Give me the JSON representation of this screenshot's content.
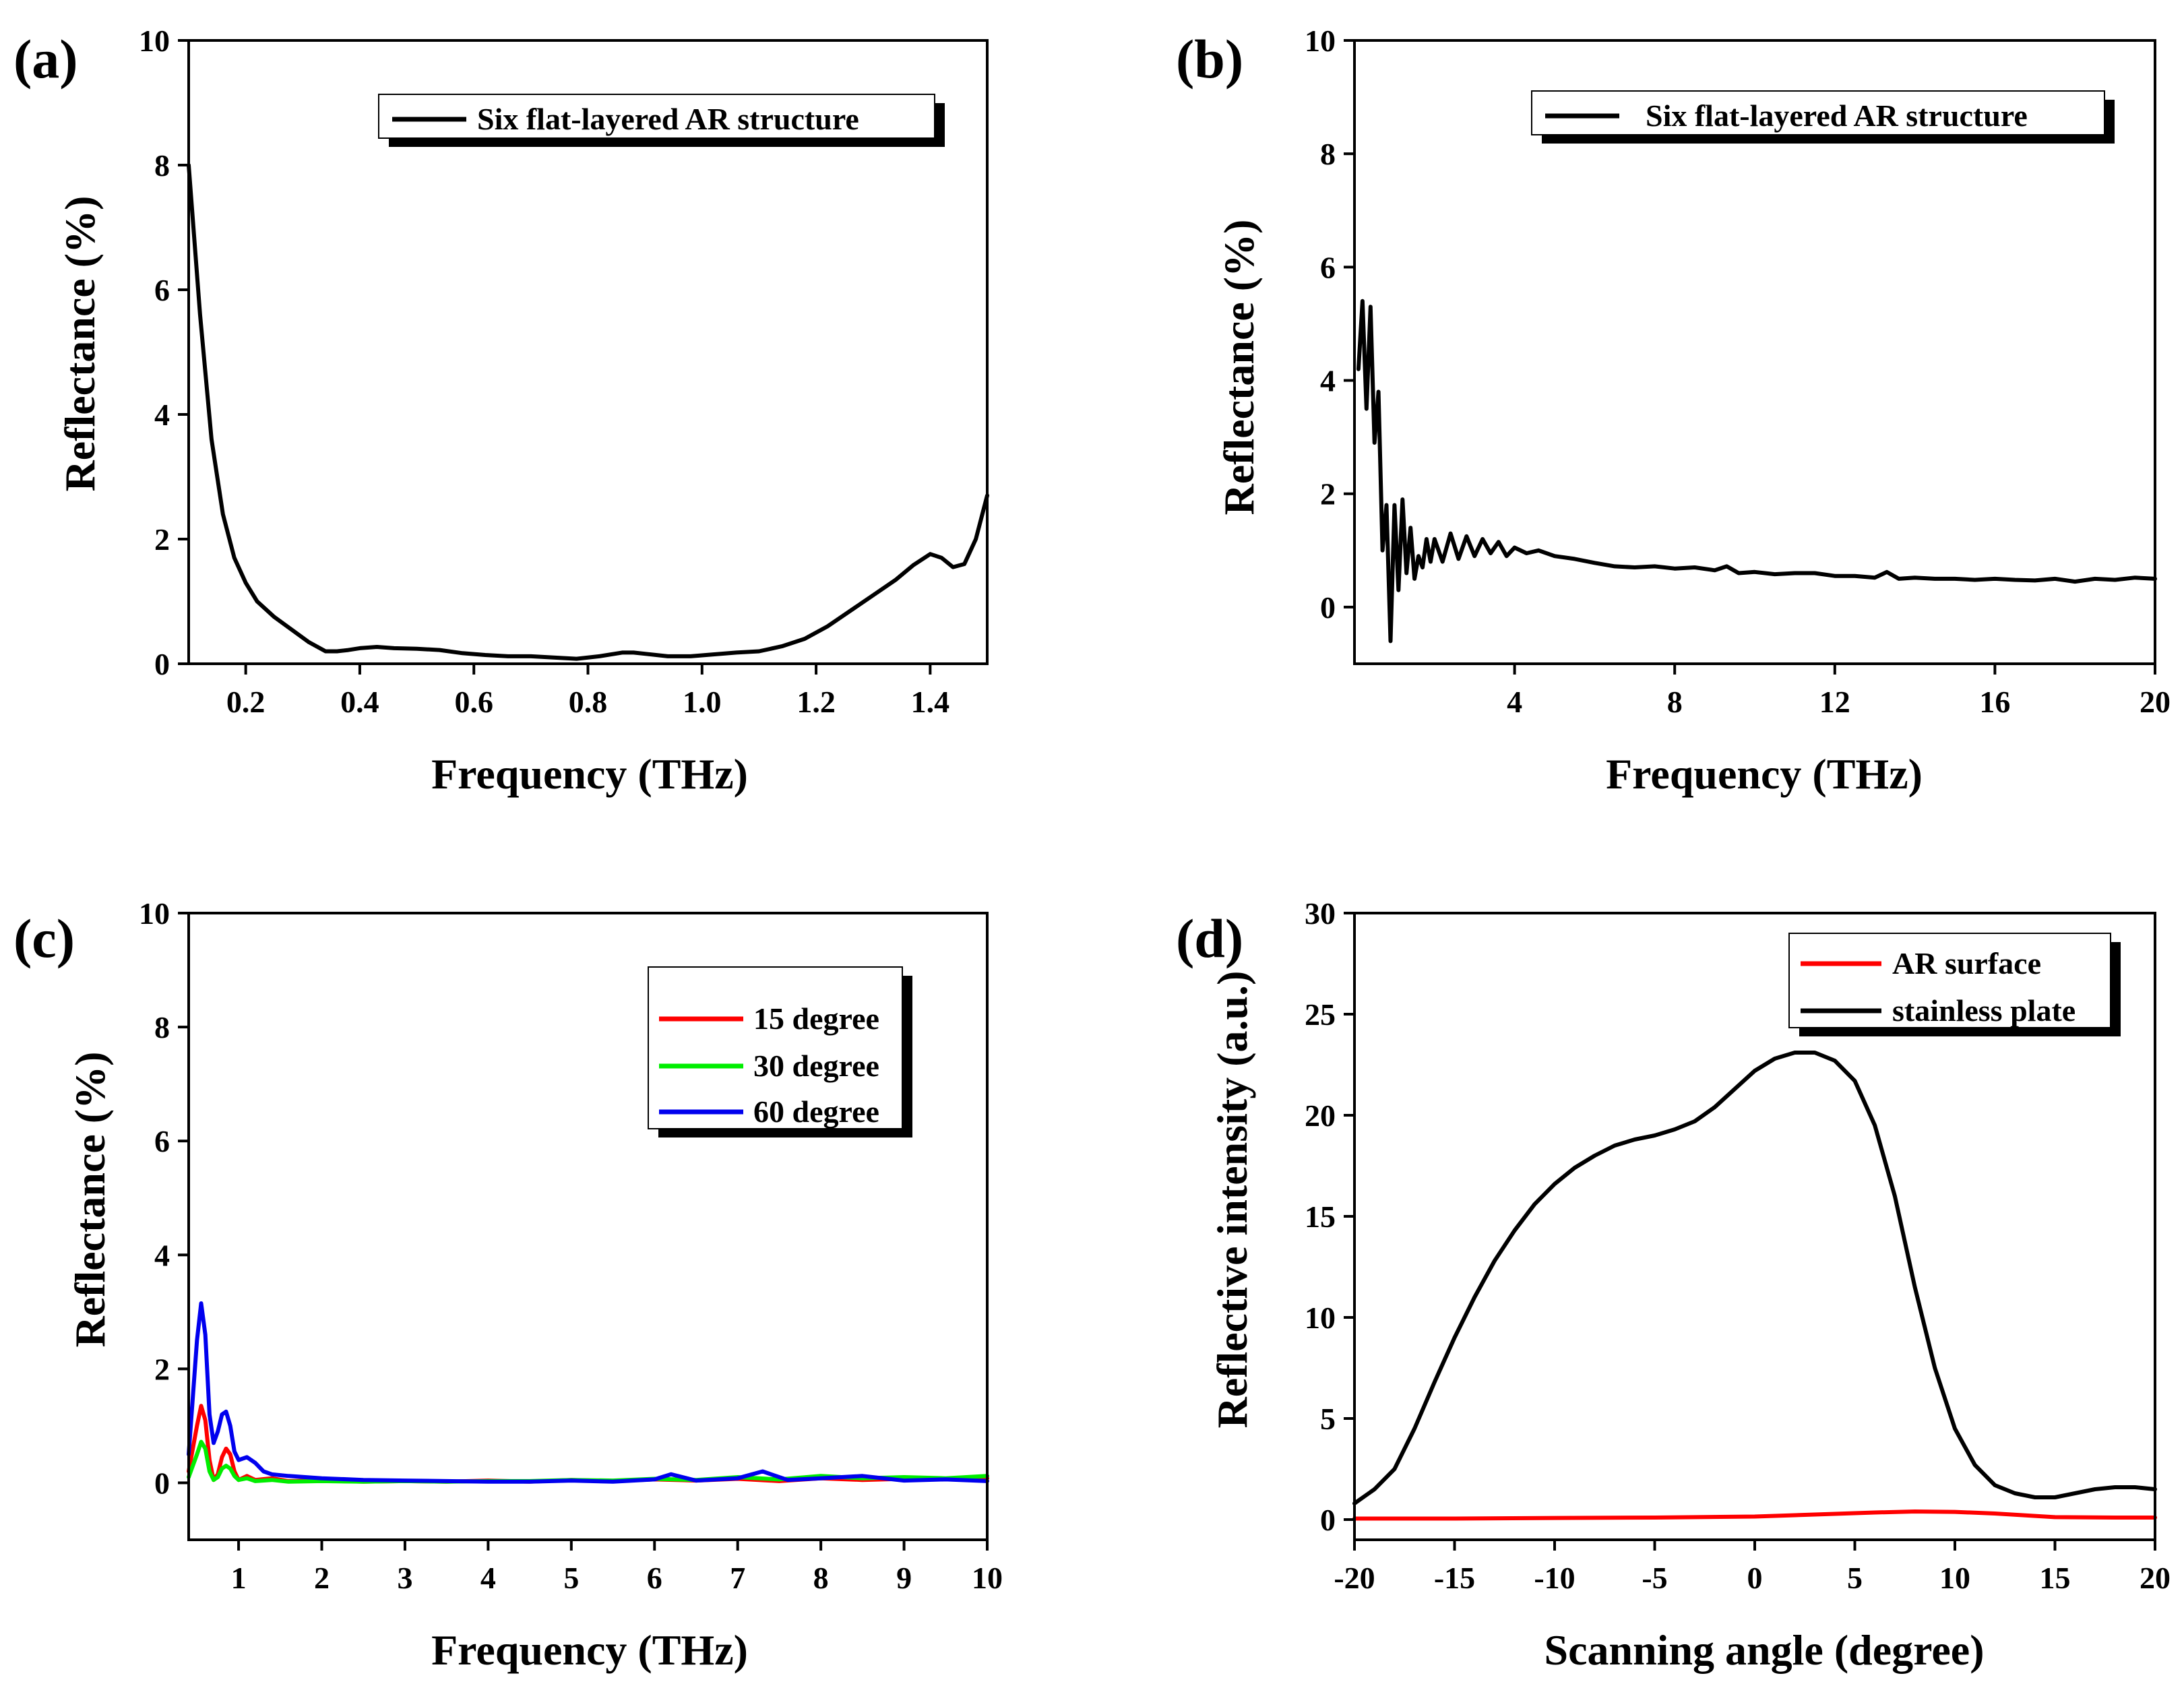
{
  "chart_data": [
    {
      "type": "line",
      "panel_label": "(a)",
      "xlabel": "Frequency (THz)",
      "ylabel": "Reflectance (%)",
      "xlim": [
        0.1,
        1.5
      ],
      "ylim": [
        0,
        10
      ],
      "xticks": [
        0.2,
        0.4,
        0.6,
        0.8,
        1.0,
        1.2,
        1.4
      ],
      "xtick_labels": [
        "0.2",
        "0.4",
        "0.6",
        "0.8",
        "1.0",
        "1.2",
        "1.4"
      ],
      "yticks": [
        0,
        2,
        4,
        6,
        8,
        10
      ],
      "ytick_labels": [
        "0",
        "2",
        "4",
        "6",
        "8",
        "10"
      ],
      "legend_position": "top-right",
      "series": [
        {
          "name": "Six flat-layered AR structure",
          "color": "#000000",
          "x": [
            0.1,
            0.12,
            0.14,
            0.16,
            0.18,
            0.2,
            0.22,
            0.25,
            0.28,
            0.31,
            0.34,
            0.36,
            0.38,
            0.4,
            0.43,
            0.46,
            0.5,
            0.54,
            0.58,
            0.62,
            0.66,
            0.7,
            0.74,
            0.78,
            0.82,
            0.86,
            0.88,
            0.9,
            0.94,
            0.98,
            1.02,
            1.06,
            1.1,
            1.14,
            1.18,
            1.22,
            1.26,
            1.3,
            1.34,
            1.37,
            1.4,
            1.42,
            1.44,
            1.46,
            1.48,
            1.5
          ],
          "y": [
            8.0,
            5.6,
            3.6,
            2.4,
            1.7,
            1.3,
            1.0,
            0.75,
            0.55,
            0.35,
            0.2,
            0.2,
            0.22,
            0.25,
            0.27,
            0.25,
            0.24,
            0.22,
            0.17,
            0.14,
            0.12,
            0.12,
            0.1,
            0.08,
            0.12,
            0.18,
            0.18,
            0.16,
            0.12,
            0.12,
            0.15,
            0.18,
            0.2,
            0.28,
            0.4,
            0.6,
            0.85,
            1.1,
            1.35,
            1.58,
            1.76,
            1.7,
            1.55,
            1.6,
            2.0,
            2.7
          ]
        }
      ]
    },
    {
      "type": "line",
      "panel_label": "(b)",
      "xlabel": "Frequency (THz)",
      "ylabel": "Reflectance (%)",
      "xlim": [
        0,
        20
      ],
      "ylim": [
        -1,
        10
      ],
      "xticks": [
        4,
        8,
        12,
        16,
        20
      ],
      "xtick_labels": [
        "4",
        "8",
        "12",
        "16",
        "20"
      ],
      "yticks": [
        0,
        2,
        4,
        6,
        8,
        10
      ],
      "ytick_labels": [
        "0",
        "2",
        "4",
        "6",
        "8",
        "10"
      ],
      "legend_position": "top-right",
      "series": [
        {
          "name": "Six flat-layered AR structure",
          "color": "#000000",
          "x": [
            0.1,
            0.2,
            0.3,
            0.4,
            0.5,
            0.6,
            0.7,
            0.8,
            0.9,
            1.0,
            1.1,
            1.2,
            1.3,
            1.4,
            1.5,
            1.6,
            1.7,
            1.8,
            1.9,
            2.0,
            2.2,
            2.4,
            2.6,
            2.8,
            3.0,
            3.2,
            3.4,
            3.6,
            3.8,
            4.0,
            4.3,
            4.6,
            5.0,
            5.5,
            6.0,
            6.5,
            7.0,
            7.5,
            8.0,
            8.5,
            9.0,
            9.3,
            9.6,
            10.0,
            10.5,
            11.0,
            11.5,
            12.0,
            12.5,
            13.0,
            13.3,
            13.6,
            14.0,
            14.5,
            15.0,
            15.5,
            16.0,
            16.5,
            17.0,
            17.5,
            18.0,
            18.5,
            19.0,
            19.5,
            20.0
          ],
          "y": [
            4.2,
            5.4,
            3.5,
            5.3,
            2.9,
            3.8,
            1.0,
            1.8,
            -0.6,
            1.8,
            0.3,
            1.9,
            0.6,
            1.4,
            0.5,
            0.9,
            0.7,
            1.2,
            0.8,
            1.2,
            0.8,
            1.3,
            0.85,
            1.25,
            0.9,
            1.2,
            0.95,
            1.15,
            0.9,
            1.05,
            0.95,
            1.0,
            0.9,
            0.85,
            0.78,
            0.72,
            0.7,
            0.72,
            0.68,
            0.7,
            0.65,
            0.72,
            0.6,
            0.62,
            0.58,
            0.6,
            0.6,
            0.55,
            0.55,
            0.52,
            0.62,
            0.5,
            0.52,
            0.5,
            0.5,
            0.48,
            0.5,
            0.48,
            0.47,
            0.5,
            0.45,
            0.5,
            0.48,
            0.52,
            0.5
          ]
        }
      ]
    },
    {
      "type": "line",
      "panel_label": "(c)",
      "xlabel": "Frequency (THz)",
      "ylabel": "Reflectance (%)",
      "xlim": [
        0.4,
        10
      ],
      "ylim": [
        -1,
        10
      ],
      "xticks": [
        1,
        2,
        3,
        4,
        5,
        6,
        7,
        8,
        9,
        10
      ],
      "xtick_labels": [
        "1",
        "2",
        "3",
        "4",
        "5",
        "6",
        "7",
        "8",
        "9",
        "10"
      ],
      "yticks": [
        0,
        2,
        4,
        6,
        8,
        10
      ],
      "ytick_labels": [
        "0",
        "2",
        "4",
        "6",
        "8",
        "10"
      ],
      "legend_position": "top-right",
      "series": [
        {
          "name": "15 degree",
          "color": "#ff0000",
          "x": [
            0.4,
            0.5,
            0.55,
            0.6,
            0.65,
            0.7,
            0.75,
            0.8,
            0.85,
            0.9,
            0.95,
            1.0,
            1.1,
            1.2,
            1.4,
            1.6,
            2.0,
            2.5,
            3.0,
            3.5,
            4.0,
            4.5,
            5.0,
            5.5,
            6.0,
            6.5,
            7.0,
            7.5,
            8.0,
            8.5,
            9.0,
            9.5,
            10.0
          ],
          "y": [
            0.2,
            1.0,
            1.35,
            1.1,
            0.4,
            0.05,
            0.15,
            0.45,
            0.6,
            0.5,
            0.2,
            0.05,
            0.12,
            0.05,
            0.08,
            0.03,
            0.04,
            0.02,
            0.03,
            0.02,
            0.04,
            0.02,
            0.05,
            0.03,
            0.06,
            0.04,
            0.07,
            0.03,
            0.08,
            0.05,
            0.07,
            0.06,
            0.08
          ]
        },
        {
          "name": "30 degree",
          "color": "#00ee00",
          "x": [
            0.4,
            0.5,
            0.55,
            0.6,
            0.65,
            0.7,
            0.75,
            0.8,
            0.85,
            0.9,
            0.95,
            1.0,
            1.1,
            1.2,
            1.4,
            1.6,
            2.0,
            2.5,
            3.0,
            3.5,
            4.0,
            4.5,
            5.0,
            5.5,
            6.0,
            6.5,
            7.0,
            7.5,
            8.0,
            8.5,
            9.0,
            9.5,
            10.0
          ],
          "y": [
            0.1,
            0.5,
            0.72,
            0.6,
            0.2,
            0.05,
            0.1,
            0.25,
            0.3,
            0.25,
            0.12,
            0.05,
            0.08,
            0.03,
            0.05,
            0.02,
            0.03,
            0.02,
            0.03,
            0.02,
            0.03,
            0.03,
            0.05,
            0.04,
            0.07,
            0.05,
            0.1,
            0.06,
            0.12,
            0.08,
            0.1,
            0.08,
            0.12
          ]
        },
        {
          "name": "60 degree",
          "color": "#0000ee",
          "x": [
            0.4,
            0.5,
            0.55,
            0.6,
            0.65,
            0.7,
            0.75,
            0.8,
            0.85,
            0.9,
            0.95,
            1.0,
            1.1,
            1.2,
            1.3,
            1.4,
            1.6,
            1.8,
            2.0,
            2.5,
            3.0,
            3.5,
            4.0,
            4.5,
            5.0,
            5.5,
            6.0,
            6.2,
            6.5,
            7.0,
            7.3,
            7.6,
            8.0,
            8.5,
            9.0,
            9.5,
            10.0
          ],
          "y": [
            0.5,
            2.5,
            3.15,
            2.6,
            1.2,
            0.7,
            0.9,
            1.2,
            1.25,
            1.0,
            0.55,
            0.4,
            0.45,
            0.35,
            0.2,
            0.15,
            0.12,
            0.1,
            0.08,
            0.05,
            0.04,
            0.03,
            0.02,
            0.02,
            0.04,
            0.02,
            0.06,
            0.15,
            0.04,
            0.08,
            0.2,
            0.05,
            0.08,
            0.12,
            0.04,
            0.06,
            0.03
          ]
        }
      ]
    },
    {
      "type": "line",
      "panel_label": "(d)",
      "xlabel": "Scanning angle (degree)",
      "ylabel": "Reflective intensity (a.u.)",
      "xlim": [
        -20,
        20
      ],
      "ylim": [
        -1,
        30
      ],
      "xticks": [
        -20,
        -15,
        -10,
        -5,
        0,
        5,
        10,
        15,
        20
      ],
      "xtick_labels": [
        "-20",
        "-15",
        "-10",
        "-5",
        "0",
        "5",
        "10",
        "15",
        "20"
      ],
      "yticks": [
        0,
        5,
        10,
        15,
        20,
        25,
        30
      ],
      "ytick_labels": [
        "0",
        "5",
        "10",
        "15",
        "20",
        "25",
        "30"
      ],
      "legend_position": "top-right",
      "series": [
        {
          "name": "AR surface",
          "color": "#ff0000",
          "x": [
            -20,
            -15,
            -10,
            -5,
            0,
            3,
            6,
            8,
            10,
            12,
            15,
            18,
            20
          ],
          "y": [
            0.05,
            0.05,
            0.08,
            0.1,
            0.15,
            0.25,
            0.35,
            0.4,
            0.38,
            0.3,
            0.12,
            0.1,
            0.1
          ]
        },
        {
          "name": "stainless plate",
          "color": "#000000",
          "x": [
            -20,
            -19,
            -18,
            -17,
            -16,
            -15,
            -14,
            -13,
            -12,
            -11,
            -10,
            -9,
            -8,
            -7,
            -6,
            -5,
            -4,
            -3,
            -2,
            -1,
            0,
            1,
            2,
            3,
            4,
            5,
            6,
            7,
            8,
            9,
            10,
            11,
            12,
            13,
            14,
            15,
            16,
            17,
            18,
            19,
            20
          ],
          "y": [
            0.8,
            1.5,
            2.5,
            4.5,
            6.8,
            9.0,
            11.0,
            12.8,
            14.3,
            15.6,
            16.6,
            17.4,
            18.0,
            18.5,
            18.8,
            19.0,
            19.3,
            19.7,
            20.4,
            21.3,
            22.2,
            22.8,
            23.1,
            23.1,
            22.7,
            21.7,
            19.5,
            16.0,
            11.5,
            7.5,
            4.5,
            2.7,
            1.7,
            1.3,
            1.1,
            1.1,
            1.3,
            1.5,
            1.6,
            1.6,
            1.5
          ]
        }
      ]
    }
  ]
}
